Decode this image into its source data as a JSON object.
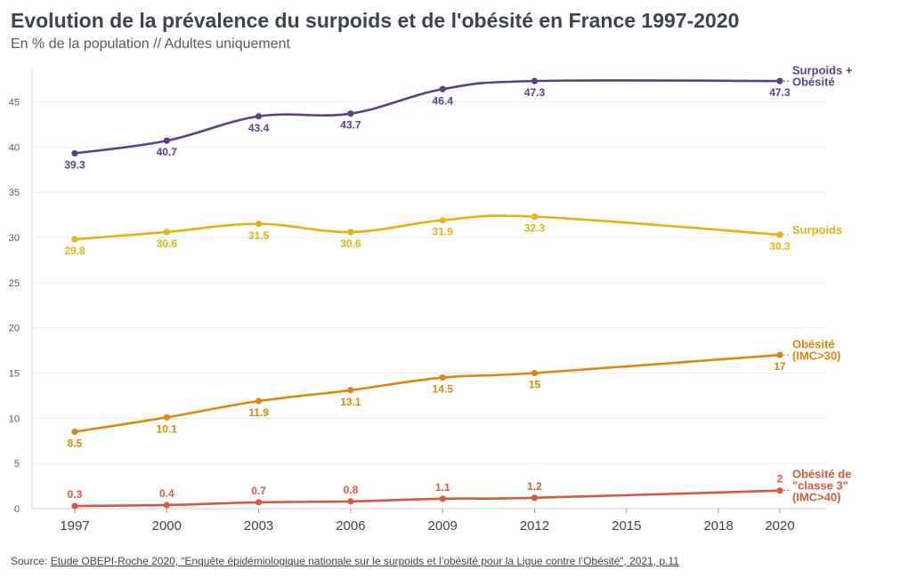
{
  "title": "Evolution de la prévalence du surpoids et de l'obésité en France 1997-2020",
  "subtitle": "En % de la population // Adultes uniquement",
  "source": {
    "prefix": "Source: ",
    "link_text": "Etude OBEPI-Roche 2020, “Enquête épidémiologique nationale sur le surpoids et l’obésité pour la Ligue contre l’Obésité”, 2021, p.11"
  },
  "chart_data": {
    "type": "line",
    "title": "Evolution de la prévalence du surpoids et de l'obésité en France 1997-2020",
    "subtitle": "En % de la population // Adultes uniquement",
    "xlabel": "",
    "ylabel": "",
    "x_ticks": [
      1997,
      2000,
      2003,
      2006,
      2009,
      2012,
      2015,
      2018,
      2020
    ],
    "y_ticks": [
      0,
      5,
      10,
      15,
      20,
      25,
      30,
      35,
      40,
      45
    ],
    "xlim": [
      1997,
      2020
    ],
    "ylim": [
      0,
      48
    ],
    "grid": "horizontal",
    "legend": "end-of-line labels",
    "series": [
      {
        "name": "Surpoids + Obésité",
        "label_lines": [
          "Surpoids +",
          "Obésité"
        ],
        "color": "#5c3f8e",
        "x": [
          1997,
          2000,
          2003,
          2006,
          2009,
          2012,
          2020
        ],
        "values": [
          39.3,
          40.7,
          43.4,
          43.7,
          46.4,
          47.3,
          47.3
        ],
        "labels": [
          "39.3",
          "40.7",
          "43.4",
          "43.7",
          "46.4",
          "47.3",
          "47.3"
        ]
      },
      {
        "name": "Surpoids",
        "label_lines": [
          "Surpoids"
        ],
        "color": "#e8b010",
        "x": [
          1997,
          2000,
          2003,
          2006,
          2009,
          2012,
          2020
        ],
        "values": [
          29.8,
          30.6,
          31.5,
          30.6,
          31.9,
          32.3,
          30.3
        ],
        "labels": [
          "29.8",
          "30.6",
          "31.5",
          "30.6",
          "31.9",
          "32.3",
          "30.3"
        ]
      },
      {
        "name": "Obésité (IMC>30)",
        "label_lines": [
          "Obésité",
          "(IMC>30)"
        ],
        "color": "#e0860e",
        "x": [
          1997,
          2000,
          2003,
          2006,
          2009,
          2012,
          2020
        ],
        "values": [
          8.5,
          10.1,
          11.9,
          13.1,
          14.5,
          15,
          17
        ],
        "labels": [
          "8.5",
          "10.1",
          "11.9",
          "13.1",
          "14.5",
          "15",
          "17"
        ]
      },
      {
        "name": "Obésité de \"classe 3\" (IMC>40)",
        "label_lines": [
          "Obésité de",
          "\"classe 3\"",
          "(IMC>40)"
        ],
        "color": "#d55a3a",
        "x": [
          1997,
          2000,
          2003,
          2006,
          2009,
          2012,
          2020
        ],
        "values": [
          0.3,
          0.4,
          0.7,
          0.8,
          1.1,
          1.2,
          2
        ],
        "labels": [
          "0.3",
          "0.4",
          "0.7",
          "0.8",
          "1.1",
          "1.2",
          "2"
        ]
      }
    ]
  }
}
